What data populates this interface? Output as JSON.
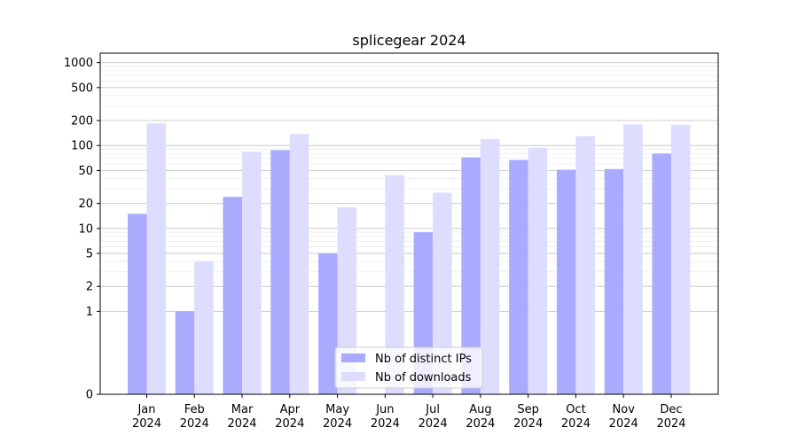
{
  "chart_data": {
    "type": "bar",
    "title": "splicegear 2024",
    "xlabel": "",
    "ylabel": "",
    "yscale": "symlog",
    "ylim": [
      0,
      1300
    ],
    "yticks": [
      0,
      1,
      2,
      5,
      10,
      20,
      50,
      100,
      200,
      500,
      1000
    ],
    "ytick_labels": [
      "0",
      "1",
      "2",
      "5",
      "10",
      "20",
      "50",
      "100",
      "200",
      "500",
      "1000"
    ],
    "grid": true,
    "legend_position": "lower-center",
    "categories": [
      {
        "month": "Jan",
        "year": "2024"
      },
      {
        "month": "Feb",
        "year": "2024"
      },
      {
        "month": "Mar",
        "year": "2024"
      },
      {
        "month": "Apr",
        "year": "2024"
      },
      {
        "month": "May",
        "year": "2024"
      },
      {
        "month": "Jun",
        "year": "2024"
      },
      {
        "month": "Jul",
        "year": "2024"
      },
      {
        "month": "Aug",
        "year": "2024"
      },
      {
        "month": "Sep",
        "year": "2024"
      },
      {
        "month": "Oct",
        "year": "2024"
      },
      {
        "month": "Nov",
        "year": "2024"
      },
      {
        "month": "Dec",
        "year": "2024"
      }
    ],
    "series": [
      {
        "name": "Nb of distinct IPs",
        "color": "#aaaaff",
        "values": [
          15,
          1,
          24,
          88,
          5,
          0,
          9,
          72,
          67,
          51,
          52,
          80
        ]
      },
      {
        "name": "Nb of downloads",
        "color": "#ddddff",
        "values": [
          185,
          4,
          84,
          138,
          18,
          44,
          27,
          120,
          94,
          130,
          180,
          178
        ]
      }
    ]
  }
}
